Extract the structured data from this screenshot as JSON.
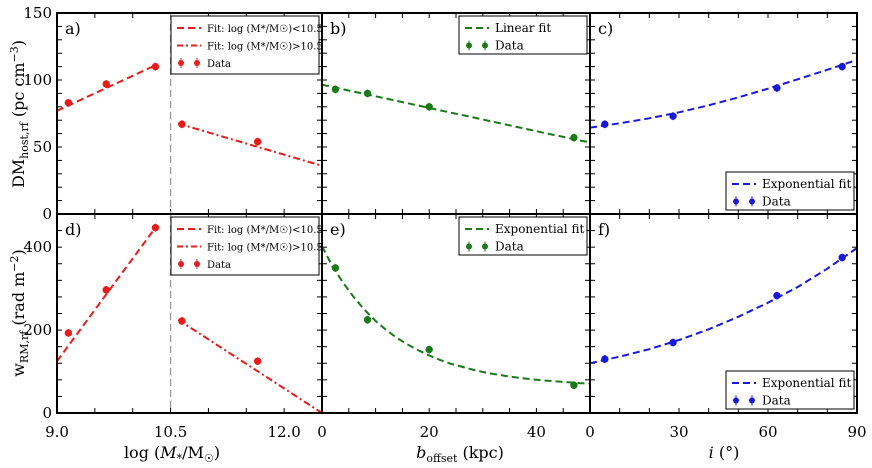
{
  "figure": {
    "ylabel_top": "DM",
    "ylabel_top_sub": "host,rf",
    "ylabel_top_unit": "(pc cm",
    "ylabel_top_unit_exp": "−3",
    "ylabel_top_unit_close": ")",
    "ylabel_bottom": "w",
    "ylabel_bottom_sub": "RM,rf",
    "ylabel_bottom_unit": "(rad m",
    "ylabel_bottom_unit_exp": "−2",
    "ylabel_bottom_unit_close": ")",
    "xlabel_mass_prefix": "log (",
    "xlabel_mass_M": "M",
    "xlabel_mass_star": "*",
    "xlabel_mass_slash": "/M",
    "xlabel_mass_sun": "☉",
    "xlabel_mass_close": ")",
    "xlabel_offset_b": "b",
    "xlabel_offset_sub": "offset",
    "xlabel_offset_unit": "(kpc)",
    "xlabel_incl_i": "i",
    "xlabel_incl_unit": "(°)",
    "colors": {
      "red": "#e81b1b",
      "green": "#1a7a1a",
      "blue": "#1818d8",
      "divider": "#999999"
    }
  },
  "chart_data": [
    {
      "panel": "a)",
      "type": "line",
      "row": "top",
      "col": "mass",
      "xlim": [
        9.0,
        12.5
      ],
      "ylim": [
        0,
        150
      ],
      "yticks": [
        "0",
        "50",
        "100",
        "150"
      ],
      "divider_x": 10.5,
      "fit_low": {
        "x": [
          9.0,
          10.3
        ],
        "y": [
          77,
          111
        ]
      },
      "fit_high": {
        "x": [
          10.6,
          12.5
        ],
        "y": [
          67.5,
          36
        ]
      },
      "data": {
        "x": [
          9.15,
          9.65,
          10.3,
          10.65,
          11.65
        ],
        "y": [
          83,
          97,
          110,
          67,
          54
        ]
      },
      "legend": [
        "Fit: log (M*/M☉)<10.5",
        "Fit: log (M*/M☉)>10.5",
        "Data"
      ],
      "legend_position": "top-right"
    },
    {
      "panel": "b)",
      "type": "line",
      "row": "top",
      "col": "offset",
      "xlim": [
        0,
        50
      ],
      "ylim": [
        0,
        150
      ],
      "fit": {
        "x": [
          0,
          3,
          6,
          9,
          12,
          15,
          18,
          21,
          24,
          27,
          30,
          33,
          36,
          39,
          42,
          45,
          48,
          50
        ],
        "y": [
          96.5,
          93.9,
          91.3,
          88.7,
          86.1,
          83.5,
          80.9,
          78.3,
          75.7,
          73.1,
          70.5,
          67.9,
          65.3,
          62.7,
          60.1,
          57.5,
          54.9,
          53.5
        ]
      },
      "data": {
        "x": [
          2.5,
          8.5,
          20,
          47
        ],
        "y": [
          93,
          90,
          80,
          57
        ]
      },
      "legend": [
        "Linear fit",
        "Data"
      ],
      "legend_position": "top-right"
    },
    {
      "panel": "c)",
      "type": "line",
      "row": "top",
      "col": "inclination",
      "xlim": [
        0,
        90
      ],
      "ylim": [
        0,
        150
      ],
      "fit": {
        "x": [
          0,
          10,
          20,
          30,
          40,
          50,
          60,
          70,
          80,
          90
        ],
        "y": [
          64.5,
          67.7,
          71.4,
          75.9,
          81.1,
          87.0,
          93.5,
          100.5,
          107.6,
          115.0
        ]
      },
      "data": {
        "x": [
          5,
          28,
          63,
          85
        ],
        "y": [
          67,
          73,
          94,
          110
        ]
      },
      "legend": [
        "Exponential fit",
        "Data"
      ],
      "legend_position": "bottom-right"
    },
    {
      "panel": "d)",
      "type": "line",
      "row": "bottom",
      "col": "mass",
      "xlim": [
        9.0,
        12.5
      ],
      "ylim": [
        0,
        480
      ],
      "yticks": [
        "0",
        "200",
        "400"
      ],
      "xticks": [
        "9.0",
        "10.5",
        "12.0"
      ],
      "divider_x": 10.5,
      "fit_low": {
        "x": [
          9.0,
          10.3
        ],
        "y": [
          125,
          447
        ]
      },
      "fit_high": {
        "x": [
          10.6,
          12.5
        ],
        "y": [
          225,
          0
        ]
      },
      "data": {
        "x": [
          9.15,
          9.65,
          10.3,
          10.65,
          11.65
        ],
        "y": [
          193,
          297,
          447,
          222,
          125
        ]
      },
      "legend": [
        "Fit: log (M*/M☉)<10.5",
        "Fit: log (M*/M☉)>10.5",
        "Data"
      ],
      "legend_position": "top-right"
    },
    {
      "panel": "e)",
      "type": "line",
      "row": "bottom",
      "col": "offset",
      "xlim": [
        0,
        50
      ],
      "ylim": [
        0,
        480
      ],
      "xticks": [
        "0",
        "20",
        "40"
      ],
      "fit": {
        "x": [
          0,
          2,
          4,
          6,
          8,
          10,
          12,
          14,
          16,
          18,
          20,
          22,
          24,
          26,
          28,
          30,
          32,
          34,
          36,
          38,
          40,
          42,
          44,
          46,
          48,
          50
        ],
        "y": [
          402,
          353,
          313,
          278,
          248,
          222,
          200,
          181,
          165,
          151,
          139,
          128,
          119,
          112,
          105,
          99,
          94,
          90,
          86,
          83,
          80,
          78,
          76,
          74,
          72,
          71
        ]
      },
      "data": {
        "x": [
          2.5,
          8.5,
          20,
          47
        ],
        "y": [
          350,
          225,
          153,
          67
        ]
      },
      "legend": [
        "Exponential fit",
        "Data"
      ],
      "legend_position": "top-right"
    },
    {
      "panel": "f)",
      "type": "line",
      "row": "bottom",
      "col": "inclination",
      "xlim": [
        0,
        90
      ],
      "ylim": [
        0,
        480
      ],
      "xticks": [
        "0",
        "30",
        "60",
        "90"
      ],
      "fit": {
        "x": [
          0,
          10,
          20,
          30,
          40,
          50,
          60,
          70,
          80,
          90
        ],
        "y": [
          120,
          136,
          154,
          176,
          202,
          232,
          266,
          304,
          348,
          398
        ]
      },
      "data": {
        "x": [
          5,
          28,
          63,
          85
        ],
        "y": [
          130,
          170,
          283,
          375
        ]
      },
      "legend": [
        "Exponential fit",
        "Data"
      ],
      "legend_position": "bottom-right"
    }
  ]
}
